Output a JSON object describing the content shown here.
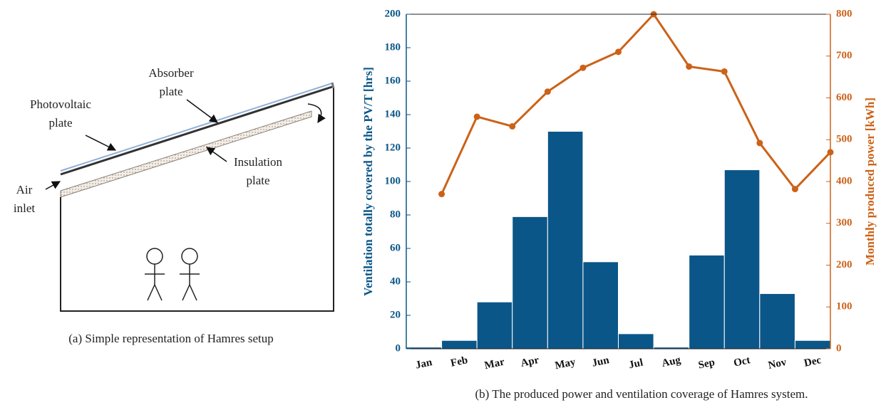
{
  "diagram": {
    "photovoltaic_label": [
      "Photovoltaic",
      "plate"
    ],
    "absorber_label": [
      "Absorber",
      "plate"
    ],
    "insulation_label": [
      "Insulation",
      "plate"
    ],
    "inlet_label": [
      "Air",
      "inlet"
    ],
    "caption": "(a) Simple representation of Hamres setup"
  },
  "chart_data": {
    "type": "bar",
    "caption": "(b) The produced power and ventilation coverage of Hamres system.",
    "ylabel": "Ventilation totally covered by the PV/T [hrs]",
    "y2label": "Monthly produced power [kWh]",
    "categories": [
      "Jan",
      "Feb",
      "Mar",
      "Apr",
      "May",
      "Jun",
      "Jul",
      "Aug",
      "Sep",
      "Oct",
      "Nov",
      "Dec"
    ],
    "series": [
      {
        "type": "bar",
        "color": "#0b5688",
        "values": [
          1,
          5,
          28,
          79,
          130,
          52,
          9,
          1,
          56,
          107,
          33,
          5
        ]
      },
      {
        "type": "line",
        "axis": "y2",
        "color": "#cc6218",
        "values": [
          370,
          555,
          532,
          615,
          672,
          710,
          800,
          675,
          663,
          492,
          382,
          470
        ]
      }
    ],
    "ylim": [
      0,
      200
    ],
    "yticks": [
      0,
      20,
      40,
      60,
      80,
      100,
      120,
      140,
      160,
      180,
      200
    ],
    "y2lim": [
      0,
      800
    ],
    "y2ticks": [
      0,
      100,
      200,
      300,
      400,
      500,
      600,
      700,
      800
    ],
    "grid": false
  }
}
